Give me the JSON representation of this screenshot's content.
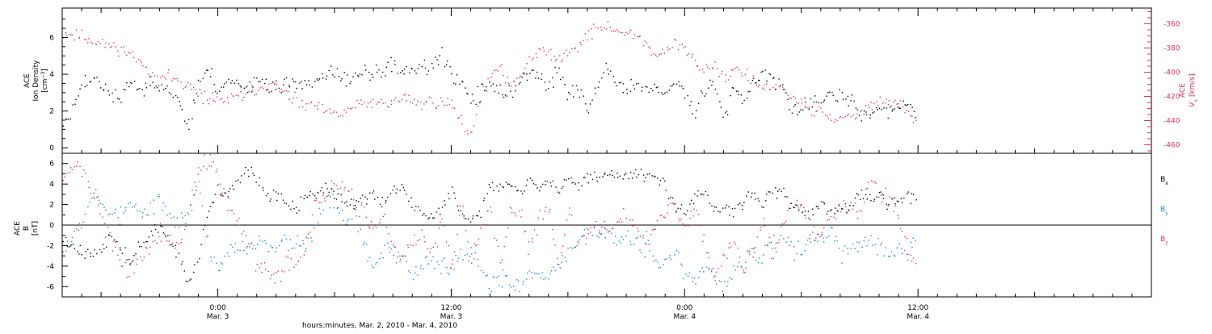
{
  "figure": {
    "xlabel": "hours:minutes, Mar. 2, 2010 - Mar. 4, 2010",
    "x_ticks": [
      {
        "hour": 24,
        "time": "0:00",
        "date": "Mar. 3"
      },
      {
        "hour": 36,
        "time": "12:00",
        "date": "Mar. 3"
      },
      {
        "hour": 48,
        "time": "0:00",
        "date": "Mar. 4"
      },
      {
        "hour": 60,
        "time": "12:00",
        "date": "Mar. 4"
      }
    ],
    "xlim_hours": [
      16.0,
      72.0
    ],
    "data_end_hour": 59.9
  },
  "chart_data": [
    {
      "type": "scatter",
      "panel": "top",
      "ylabel_line1": "ACE",
      "ylabel_line2": "Ion Density",
      "ylabel_unit": "[cm",
      "ylabel_unit_sup": "−3",
      "ylabel_unit_end": "]",
      "ylim": [
        -0.3,
        7.6
      ],
      "yticks": [
        "0",
        "2",
        "4",
        "6"
      ],
      "y2label_line1": "ACE",
      "y2label_main": "V",
      "y2label_sub": "x",
      "y2label_unit": "[km/s]",
      "y2lim": [
        -467,
        -347
      ],
      "y2ticks": [
        "-360",
        "-380",
        "-400",
        "-420",
        "-440",
        "-460"
      ],
      "colors": {
        "density": "#000000",
        "vx": "#e0325a"
      },
      "series": [
        {
          "key": "density",
          "x": [
            16.0,
            16.5,
            17.0,
            17.5,
            18.0,
            18.5,
            19.0,
            19.5,
            20.0,
            20.5,
            21.0,
            21.5,
            22.0,
            22.5,
            23.0,
            23.5,
            24.0,
            24.5,
            25.0,
            25.5,
            26.0,
            26.5,
            27.0,
            27.5,
            28.0,
            28.5,
            29.0,
            29.5,
            30.0,
            30.5,
            31.0,
            31.5,
            32.0,
            32.5,
            33.0,
            33.5,
            34.0,
            34.5,
            35.0,
            35.5,
            36.0,
            36.5,
            37.0,
            37.5,
            38.0,
            38.5,
            39.0,
            39.5,
            40.0,
            40.5,
            41.0,
            41.5,
            42.0,
            42.5,
            43.0,
            43.5,
            44.0,
            44.5,
            45.0,
            45.5,
            46.0,
            46.5,
            47.0,
            47.5,
            48.0,
            48.5,
            49.0,
            49.5,
            50.0,
            50.5,
            51.0,
            51.5,
            52.0,
            52.5,
            53.0,
            53.5,
            54.0,
            54.5,
            55.0,
            55.5,
            56.0,
            56.5,
            57.0,
            57.5,
            58.0,
            58.5,
            59.0,
            59.5,
            59.9
          ],
          "values": [
            1.2,
            2.0,
            3.5,
            4.0,
            3.2,
            3.0,
            2.5,
            3.8,
            3.2,
            3.4,
            3.6,
            3.2,
            2.5,
            1.2,
            3.5,
            4.2,
            3.2,
            3.5,
            3.6,
            3.4,
            3.8,
            3.5,
            3.2,
            3.4,
            3.8,
            3.4,
            3.6,
            3.8,
            4.2,
            3.6,
            4.0,
            4.1,
            4.0,
            4.2,
            4.6,
            4.3,
            4.4,
            4.3,
            4.5,
            5.0,
            3.9,
            3.6,
            2.6,
            3.0,
            3.4,
            3.2,
            3.0,
            3.6,
            4.3,
            3.8,
            3.2,
            4.5,
            2.8,
            3.2,
            2.0,
            3.4,
            4.5,
            3.3,
            3.4,
            3.2,
            3.6,
            3.2,
            2.8,
            3.6,
            3.2,
            2.0,
            3.4,
            3.6,
            1.8,
            3.2,
            2.6,
            3.5,
            4.1,
            3.8,
            3.5,
            1.8,
            2.2,
            2.8,
            2.2,
            3.2,
            2.6,
            2.5,
            2.0,
            1.8,
            2.2,
            2.0,
            2.0,
            2.5,
            1.8
          ]
        },
        {
          "key": "vx",
          "x": [
            16.0,
            16.5,
            17.0,
            17.5,
            18.0,
            18.5,
            19.0,
            19.5,
            20.0,
            20.5,
            21.0,
            21.5,
            22.0,
            22.5,
            23.0,
            23.5,
            24.0,
            24.5,
            25.0,
            25.5,
            26.0,
            26.5,
            27.0,
            27.5,
            28.0,
            28.5,
            29.0,
            29.5,
            30.0,
            30.5,
            31.0,
            31.5,
            32.0,
            32.5,
            33.0,
            33.5,
            34.0,
            34.5,
            35.0,
            35.5,
            36.0,
            36.5,
            37.0,
            37.5,
            38.0,
            38.5,
            39.0,
            39.5,
            40.0,
            40.5,
            41.0,
            41.5,
            42.0,
            42.5,
            43.0,
            43.5,
            44.0,
            44.5,
            45.0,
            45.5,
            46.0,
            46.5,
            47.0,
            47.5,
            48.0,
            48.5,
            49.0,
            49.5,
            50.0,
            50.5,
            51.0,
            51.5,
            52.0,
            52.5,
            53.0,
            53.5,
            54.0,
            54.5,
            55.0,
            55.5,
            56.0,
            56.5,
            57.0,
            57.5,
            58.0,
            58.5,
            59.0,
            59.5,
            59.9
          ],
          "values": [
            -367,
            -369,
            -370,
            -374,
            -376,
            -378,
            -380,
            -385,
            -392,
            -398,
            -405,
            -403,
            -408,
            -412,
            -418,
            -421,
            -422,
            -423,
            -420,
            -416,
            -414,
            -410,
            -412,
            -418,
            -424,
            -428,
            -427,
            -432,
            -435,
            -432,
            -428,
            -426,
            -424,
            -426,
            -424,
            -420,
            -424,
            -426,
            -423,
            -425,
            -426,
            -440,
            -450,
            -420,
            -403,
            -398,
            -408,
            -404,
            -388,
            -380,
            -385,
            -390,
            -382,
            -377,
            -370,
            -362,
            -362,
            -366,
            -368,
            -368,
            -376,
            -386,
            -384,
            -376,
            -380,
            -392,
            -398,
            -392,
            -404,
            -398,
            -400,
            -407,
            -412,
            -413,
            -414,
            -421,
            -424,
            -433,
            -432,
            -437,
            -440,
            -437,
            -433,
            -428,
            -420,
            -424,
            -426,
            -433,
            -443
          ]
        }
      ]
    },
    {
      "type": "scatter",
      "panel": "bottom",
      "ylabel_line1": "ACE",
      "ylabel_line2": "B",
      "ylabel_unit": "[nT]",
      "ylim": [
        -7.0,
        7.0
      ],
      "yticks": [
        "6",
        "4",
        "2",
        "0",
        "-2",
        "-4",
        "-6"
      ],
      "colors": {
        "Bx": "#000000",
        "By": "#1a82d6",
        "Bz": "#e0325a"
      },
      "legend": [
        {
          "key": "Bx",
          "label": "B",
          "sub": "x"
        },
        {
          "key": "By",
          "label": "B",
          "sub": "y"
        },
        {
          "key": "Bz",
          "label": "B",
          "sub": "z"
        }
      ],
      "series": [
        {
          "key": "Bx",
          "x": [
            16.0,
            16.5,
            17.0,
            17.5,
            18.0,
            18.5,
            19.0,
            19.5,
            20.0,
            20.5,
            21.0,
            21.5,
            22.0,
            22.5,
            23.0,
            23.5,
            24.0,
            24.5,
            25.0,
            25.5,
            26.0,
            26.5,
            27.0,
            27.5,
            28.0,
            28.5,
            29.0,
            29.5,
            30.0,
            30.5,
            31.0,
            31.5,
            32.0,
            32.5,
            33.0,
            33.5,
            34.0,
            34.5,
            35.0,
            35.5,
            36.0,
            36.5,
            37.0,
            37.5,
            38.0,
            38.5,
            39.0,
            39.5,
            40.0,
            40.5,
            41.0,
            41.5,
            42.0,
            42.5,
            43.0,
            43.5,
            44.0,
            44.5,
            45.0,
            45.5,
            46.0,
            46.5,
            47.0,
            47.5,
            48.0,
            48.5,
            49.0,
            49.5,
            50.0,
            50.5,
            51.0,
            51.5,
            52.0,
            52.5,
            53.0,
            53.5,
            54.0,
            54.5,
            55.0,
            55.5,
            56.0,
            56.5,
            57.0,
            57.5,
            58.0,
            58.5,
            59.0,
            59.5,
            59.9
          ],
          "values": [
            -1.5,
            -2.0,
            -2.5,
            -2.8,
            -2.0,
            -1.0,
            -2.5,
            -3.5,
            -2.0,
            -1.0,
            0.0,
            -1.5,
            -3.0,
            -5.5,
            -3.0,
            1.5,
            3.5,
            3.0,
            4.0,
            5.5,
            4.5,
            3.0,
            3.0,
            2.0,
            1.5,
            3.0,
            3.0,
            4.0,
            3.0,
            2.5,
            2.0,
            2.5,
            3.0,
            2.0,
            3.5,
            4.0,
            2.0,
            1.0,
            1.0,
            1.5,
            3.5,
            1.0,
            0.5,
            1.5,
            4.0,
            3.5,
            4.0,
            3.0,
            4.5,
            3.5,
            4.5,
            3.0,
            4.5,
            4.0,
            4.8,
            4.9,
            5.0,
            5.0,
            5.0,
            5.2,
            5.0,
            4.8,
            3.8,
            2.0,
            1.5,
            3.0,
            3.5,
            1.5,
            2.0,
            1.5,
            2.5,
            3.0,
            2.0,
            3.5,
            3.0,
            2.0,
            1.5,
            1.0,
            2.0,
            1.0,
            1.5,
            2.0,
            3.0,
            2.5,
            3.0,
            2.0,
            2.5,
            3.0,
            2.5
          ]
        },
        {
          "key": "By",
          "x": [
            16.0,
            16.5,
            17.0,
            17.5,
            18.0,
            18.5,
            19.0,
            19.5,
            20.0,
            20.5,
            21.0,
            21.5,
            22.0,
            22.5,
            23.0,
            23.5,
            24.0,
            24.5,
            25.0,
            25.5,
            26.0,
            26.5,
            27.0,
            27.5,
            28.0,
            28.5,
            29.0,
            29.5,
            30.0,
            30.5,
            31.0,
            31.5,
            32.0,
            32.5,
            33.0,
            33.5,
            34.0,
            34.5,
            35.0,
            35.5,
            36.0,
            36.5,
            37.0,
            37.5,
            38.0,
            38.5,
            39.0,
            39.5,
            40.0,
            40.5,
            41.0,
            41.5,
            42.0,
            42.5,
            43.0,
            43.5,
            44.0,
            44.5,
            45.0,
            45.5,
            46.0,
            46.5,
            47.0,
            47.5,
            48.0,
            48.5,
            49.0,
            49.5,
            50.0,
            50.5,
            51.0,
            51.5,
            52.0,
            52.5,
            53.0,
            53.5,
            54.0,
            54.5,
            55.0,
            55.5,
            56.0,
            56.5,
            57.0,
            57.5,
            58.0,
            58.5,
            59.0,
            59.5,
            59.9
          ],
          "values": [
            -2.0,
            -1.0,
            0.5,
            3.0,
            2.0,
            1.5,
            1.0,
            2.0,
            1.0,
            1.5,
            2.5,
            1.0,
            0.5,
            1.5,
            4.0,
            -2.0,
            -4.0,
            -3.0,
            -2.0,
            -2.5,
            -1.5,
            -2.0,
            -2.0,
            -1.5,
            -1.5,
            -2.0,
            0.5,
            2.0,
            2.5,
            0.5,
            1.5,
            -2.0,
            -4.0,
            -2.0,
            -2.5,
            -3.0,
            -5.0,
            -4.0,
            -3.5,
            -4.0,
            -4.5,
            -2.5,
            -3.0,
            -4.5,
            -5.5,
            -5.0,
            -5.5,
            -6.0,
            -4.0,
            -5.0,
            -4.5,
            -4.0,
            -2.5,
            -1.5,
            -0.5,
            -1.0,
            -0.5,
            -1.5,
            -0.5,
            -2.0,
            -1.5,
            -3.5,
            -4.0,
            -2.0,
            -5.5,
            -5.0,
            -4.0,
            -5.0,
            -6.0,
            -4.5,
            -3.5,
            -2.5,
            -3.0,
            -1.5,
            -1.0,
            -2.0,
            -2.5,
            -1.5,
            -1.0,
            -0.5,
            -3.0,
            -2.5,
            -2.0,
            -1.5,
            -2.0,
            -3.0,
            -2.0,
            -2.5,
            -1.0
          ]
        },
        {
          "key": "Bz",
          "x": [
            16.0,
            16.5,
            17.0,
            17.5,
            18.0,
            18.5,
            19.0,
            19.5,
            20.0,
            20.5,
            21.0,
            21.5,
            22.0,
            22.5,
            23.0,
            23.5,
            24.0,
            24.5,
            25.0,
            25.5,
            26.0,
            26.5,
            27.0,
            27.5,
            28.0,
            28.5,
            29.0,
            29.5,
            30.0,
            30.5,
            31.0,
            31.5,
            32.0,
            32.5,
            33.0,
            33.5,
            34.0,
            34.5,
            35.0,
            35.5,
            36.0,
            36.5,
            37.0,
            37.5,
            38.0,
            38.5,
            39.0,
            39.5,
            40.0,
            40.5,
            41.0,
            41.5,
            42.0,
            42.5,
            43.0,
            43.5,
            44.0,
            44.5,
            45.0,
            45.5,
            46.0,
            46.5,
            47.0,
            47.5,
            48.0,
            48.5,
            49.0,
            49.5,
            50.0,
            50.5,
            51.0,
            51.5,
            52.0,
            52.5,
            53.0,
            53.5,
            54.0,
            54.5,
            55.0,
            55.5,
            56.0,
            56.5,
            57.0,
            57.5,
            58.0,
            58.5,
            59.0,
            59.5,
            59.9
          ],
          "values": [
            5.0,
            5.5,
            5.5,
            3.5,
            1.0,
            -2.0,
            -3.5,
            -4.5,
            -3.0,
            -2.0,
            -1.0,
            -1.5,
            -2.0,
            1.5,
            5.5,
            6.5,
            5.0,
            2.0,
            0.0,
            -1.5,
            -4.0,
            -4.5,
            -5.0,
            -4.0,
            -3.5,
            -1.5,
            2.0,
            3.0,
            4.0,
            3.5,
            2.0,
            1.0,
            -0.5,
            0.5,
            -2.5,
            -3.0,
            -1.5,
            -1.0,
            -3.0,
            0.5,
            -4.0,
            2.0,
            -3.0,
            -1.0,
            1.5,
            -4.0,
            1.0,
            2.0,
            -2.5,
            1.0,
            2.0,
            -3.5,
            1.5,
            -1.5,
            -1.0,
            0.0,
            -0.5,
            0.5,
            1.0,
            0.0,
            -2.5,
            0.5,
            1.5,
            2.0,
            -0.5,
            2.0,
            -1.5,
            -4.5,
            -3.0,
            -1.0,
            -4.0,
            -2.5,
            1.0,
            -3.5,
            0.0,
            2.5,
            1.5,
            -1.0,
            -0.5,
            0.5,
            1.5,
            2.0,
            1.0,
            5.0,
            3.0,
            2.5,
            0.5,
            -2.5,
            -4.0
          ]
        }
      ]
    }
  ]
}
